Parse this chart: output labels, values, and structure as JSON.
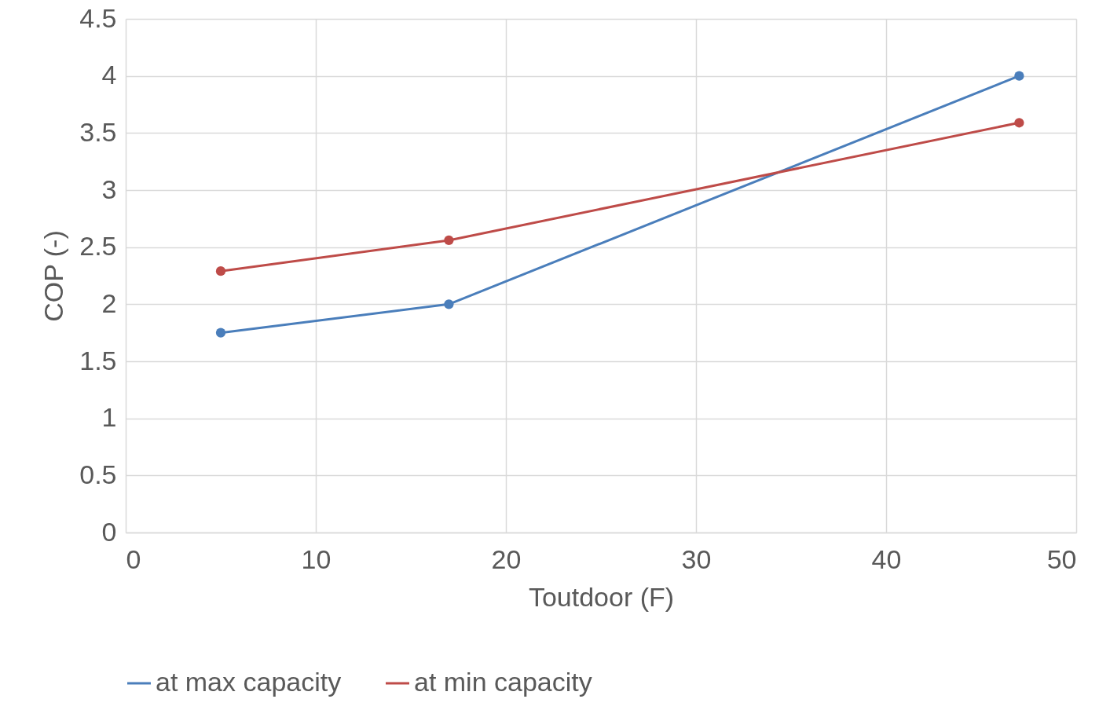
{
  "chart_data": {
    "type": "line",
    "xlabel": "Toutdoor (F)",
    "ylabel": "COP (-)",
    "x": [
      5,
      17,
      47
    ],
    "series": [
      {
        "name": "at max capacity",
        "color": "#4a7ebb",
        "values": [
          1.75,
          2.0,
          4.0
        ]
      },
      {
        "name": "at min capacity",
        "color": "#be4b48",
        "values": [
          2.29,
          2.56,
          3.59
        ]
      }
    ],
    "xlim": [
      0,
      50
    ],
    "xticks": [
      0,
      10,
      20,
      30,
      40,
      50
    ],
    "ylim": [
      0,
      4.5
    ],
    "yticks": [
      0,
      0.5,
      1,
      1.5,
      2,
      2.5,
      3,
      3.5,
      4,
      4.5
    ],
    "grid": true,
    "legend": "bottom",
    "marker": "circle"
  }
}
